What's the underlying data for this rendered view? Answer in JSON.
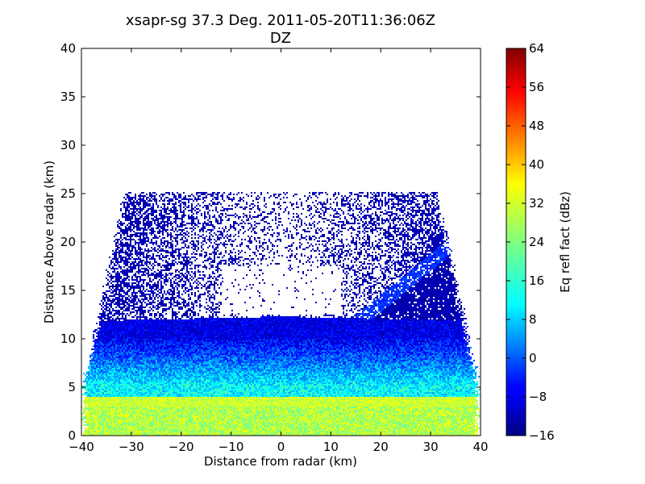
{
  "figure": {
    "title_line1": "xsapr-sg 37.3 Deg. 2011-05-20T11:36:06Z",
    "title_line2": "DZ"
  },
  "chart_data": {
    "type": "heatmap",
    "title": "xsapr-sg 37.3 Deg. 2011-05-20T11:36:06Z",
    "subtitle": "DZ",
    "xlabel": "Distance from radar (km)",
    "ylabel": "Distance Above radar  (km)",
    "xlim": [
      -40,
      40
    ],
    "ylim": [
      0,
      40
    ],
    "xticks": [
      -40,
      -30,
      -20,
      -10,
      0,
      10,
      20,
      30,
      40
    ],
    "xtick_labels": [
      "−40",
      "−30",
      "−20",
      "−10",
      "0",
      "10",
      "20",
      "30",
      "40"
    ],
    "yticks": [
      0,
      5,
      10,
      15,
      20,
      25,
      30,
      35,
      40
    ],
    "ytick_labels": [
      "0",
      "5",
      "10",
      "15",
      "20",
      "25",
      "30",
      "35",
      "40"
    ],
    "grid": false,
    "colormap": "jet",
    "colorbar": {
      "label": "Eq refl fact (dBz)",
      "range": [
        -16,
        64
      ],
      "ticks": [
        -16,
        -8,
        0,
        8,
        16,
        24,
        32,
        40,
        48,
        56,
        64
      ],
      "tick_labels": [
        "−16",
        "−8",
        "0",
        "8",
        "16",
        "24",
        "32",
        "40",
        "48",
        "56",
        "64"
      ]
    },
    "echo_structure": {
      "echo_top_km": 25,
      "echo_x_extent_km": [
        -40,
        40
      ],
      "dense_layer_top_km": 12,
      "bright_band_km": [
        3,
        4
      ],
      "bright_band_dbz": 30,
      "surface_layer_dbz": 28,
      "upper_sparse_dbz": -14,
      "cleared_region": {
        "x_km": [
          -12,
          12
        ],
        "y_km": [
          12.5,
          17.5
        ]
      },
      "slant_feature": {
        "from": [
          15,
          11.5
        ],
        "to": [
          35,
          20
        ]
      }
    }
  }
}
